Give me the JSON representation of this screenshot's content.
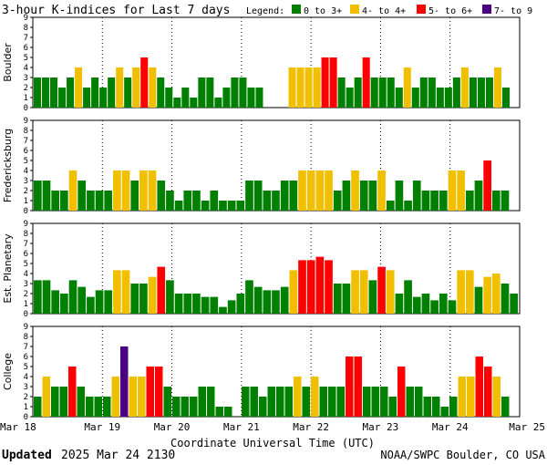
{
  "chart_data": {
    "type": "bar",
    "title": "3-hour K-indices for Last 7 days",
    "legend": {
      "label": "Legend:",
      "placement": "top-right",
      "entries": [
        {
          "label": "0 to 3+",
          "color": "#008000"
        },
        {
          "label": "4- to 4+",
          "color": "#f0c000"
        },
        {
          "label": "5- to 6+",
          "color": "#ff0000"
        },
        {
          "label": "7- to 9",
          "color": "#4b0082"
        }
      ]
    },
    "ylim": [
      0,
      9
    ],
    "y_ticks": [
      "0",
      "1",
      "2",
      "3",
      "4",
      "5",
      "6",
      "7",
      "8",
      "9"
    ],
    "x_labels": [
      "Mar 18",
      "Mar 19",
      "Mar 20",
      "Mar 21",
      "Mar 22",
      "Mar 23",
      "Mar 24",
      "Mar 25"
    ],
    "xlabel": "Coordinate Universal Time (UTC)",
    "panels": [
      {
        "name": "Boulder",
        "values": [
          3,
          3,
          3,
          2,
          3,
          4,
          2,
          3,
          2,
          3,
          4,
          3,
          4,
          5,
          4,
          3,
          2,
          1,
          2,
          1,
          3,
          3,
          1,
          2,
          3,
          3,
          2,
          2,
          0,
          0,
          0,
          4,
          4,
          4,
          4,
          5,
          5,
          3,
          2,
          3,
          5,
          3,
          3,
          3,
          2,
          4,
          2,
          3,
          3,
          2,
          2,
          3,
          4,
          3,
          3,
          3,
          4,
          2,
          0
        ]
      },
      {
        "name": "Fredericksburg",
        "values": [
          3,
          3,
          2,
          2,
          4,
          3,
          2,
          2,
          2,
          4,
          4,
          3,
          4,
          4,
          3,
          2,
          1,
          2,
          2,
          1,
          2,
          1,
          1,
          1,
          3,
          3,
          2,
          2,
          3,
          3,
          4,
          4,
          4,
          4,
          2,
          3,
          4,
          3,
          3,
          4,
          1,
          3,
          1,
          3,
          2,
          2,
          2,
          4,
          4,
          2,
          3,
          5,
          2,
          2,
          0
        ]
      },
      {
        "name": "Est. Planetary",
        "values": [
          3.33,
          3.33,
          2.33,
          2,
          3.33,
          2.67,
          1.67,
          2.33,
          2.33,
          4.33,
          4.33,
          3,
          3,
          3.67,
          4.67,
          3.33,
          2,
          2,
          2,
          1.67,
          1.67,
          0.67,
          1.33,
          2,
          3.33,
          2.67,
          2.33,
          2.33,
          2.67,
          4.33,
          5.33,
          5.33,
          5.67,
          5.33,
          3,
          3,
          4.33,
          4.33,
          3.33,
          4.67,
          4.33,
          2,
          3.33,
          1.67,
          2,
          1.33,
          2,
          1.33,
          4.33,
          4.33,
          2.67,
          3.67,
          4,
          3,
          2
        ]
      },
      {
        "name": "College",
        "values": [
          2,
          4,
          3,
          3,
          5,
          3,
          2,
          2,
          2,
          4,
          7,
          4,
          4,
          5,
          5,
          3,
          2,
          2,
          2,
          3,
          3,
          1,
          1,
          0,
          3,
          3,
          2,
          3,
          3,
          3,
          4,
          3,
          4,
          3,
          3,
          3,
          6,
          6,
          3,
          3,
          3,
          2,
          5,
          3,
          3,
          2,
          2,
          1,
          2,
          4,
          4,
          6,
          5,
          4,
          2,
          0
        ]
      }
    ]
  },
  "footer": {
    "updated_label": "Updated",
    "updated_value": "2025 Mar 24 2130",
    "credit": "NOAA/SWPC Boulder, CO USA"
  }
}
